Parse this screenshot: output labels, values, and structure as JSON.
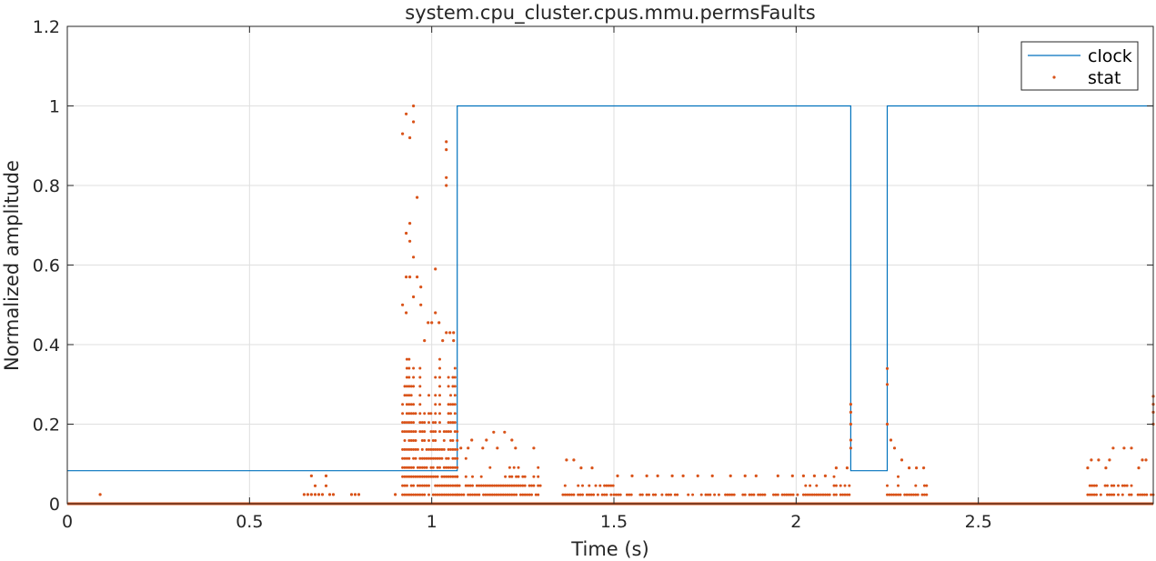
{
  "chart_data": {
    "type": "line",
    "title": "system.cpu_cluster.cpus.mmu.permsFaults",
    "xlabel": "Time (s)",
    "ylabel": "Normalized amplitude",
    "xlim": [
      0,
      2.98
    ],
    "ylim": [
      0,
      1.2
    ],
    "x_ticks": [
      0,
      0.5,
      1,
      1.5,
      2,
      2.5
    ],
    "x_tick_labels": [
      "0",
      "0.5",
      "1",
      "1.5",
      "2",
      "2.5"
    ],
    "y_ticks": [
      0,
      0.2,
      0.4,
      0.6,
      0.8,
      1,
      1.2
    ],
    "y_tick_labels": [
      "0",
      "0.2",
      "0.4",
      "0.6",
      "0.8",
      "1",
      "1.2"
    ],
    "grid": true,
    "legend_position": "top-right",
    "series": [
      {
        "name": "clock",
        "style": "step-line",
        "color": "#0072BD",
        "x": [
          0,
          1.07,
          1.07,
          2.15,
          2.15,
          2.25,
          2.25,
          2.98
        ],
        "y": [
          0.083,
          0.083,
          1,
          1,
          0.083,
          0.083,
          1,
          1
        ]
      },
      {
        "name": "stat",
        "style": "dots",
        "color": "#D95319",
        "baseline": {
          "x_start": 0,
          "x_end": 2.98,
          "y": 0
        },
        "points": [
          [
            0.09,
            0.023
          ],
          [
            0.65,
            0.023
          ],
          [
            0.66,
            0.023
          ],
          [
            0.67,
            0.023
          ],
          [
            0.67,
            0.07
          ],
          [
            0.68,
            0.023
          ],
          [
            0.68,
            0.045
          ],
          [
            0.69,
            0.023
          ],
          [
            0.7,
            0.023
          ],
          [
            0.71,
            0.07
          ],
          [
            0.71,
            0.045
          ],
          [
            0.72,
            0.023
          ],
          [
            0.73,
            0.023
          ],
          [
            0.78,
            0.023
          ],
          [
            0.79,
            0.023
          ],
          [
            0.8,
            0.023
          ],
          [
            0.9,
            0.023
          ],
          [
            0.92,
            0.93
          ],
          [
            0.93,
            0.98
          ],
          [
            0.93,
            0.68
          ],
          [
            0.94,
            0.705
          ],
          [
            0.94,
            0.92
          ],
          [
            0.94,
            0.66
          ],
          [
            0.95,
            0.96
          ],
          [
            0.95,
            0.62
          ],
          [
            0.95,
            1.0
          ],
          [
            0.96,
            0.77
          ],
          [
            0.97,
            0.545
          ],
          [
            0.98,
            0.41
          ],
          [
            0.99,
            0.455
          ],
          [
            1.01,
            0.59
          ],
          [
            1.0,
            0.455
          ],
          [
            1.01,
            0.48
          ],
          [
            1.02,
            0.455
          ],
          [
            1.03,
            0.41
          ],
          [
            1.04,
            0.43
          ],
          [
            1.04,
            0.91
          ],
          [
            1.04,
            0.89
          ],
          [
            1.04,
            0.82
          ],
          [
            1.04,
            0.8
          ],
          [
            1.05,
            0.43
          ],
          [
            0.93,
            0.57
          ],
          [
            0.94,
            0.57
          ],
          [
            0.92,
            0.5
          ],
          [
            0.93,
            0.48
          ],
          [
            0.95,
            0.52
          ],
          [
            0.96,
            0.57
          ],
          [
            0.97,
            0.5
          ],
          [
            1.06,
            0.43
          ],
          [
            1.06,
            0.41
          ],
          [
            1.17,
            0.18
          ],
          [
            1.2,
            0.18
          ],
          [
            1.11,
            0.16
          ],
          [
            1.15,
            0.16
          ],
          [
            1.22,
            0.16
          ],
          [
            1.08,
            0.14
          ],
          [
            1.1,
            0.14
          ],
          [
            1.14,
            0.14
          ],
          [
            1.18,
            0.14
          ],
          [
            1.23,
            0.14
          ],
          [
            1.28,
            0.14
          ],
          [
            1.37,
            0.11
          ],
          [
            1.39,
            0.11
          ],
          [
            1.41,
            0.09
          ],
          [
            1.44,
            0.09
          ],
          [
            1.51,
            0.07
          ],
          [
            1.55,
            0.07
          ],
          [
            1.59,
            0.07
          ],
          [
            1.62,
            0.07
          ],
          [
            1.66,
            0.07
          ],
          [
            1.69,
            0.07
          ],
          [
            1.73,
            0.07
          ],
          [
            1.77,
            0.07
          ],
          [
            1.82,
            0.07
          ],
          [
            1.86,
            0.07
          ],
          [
            1.89,
            0.07
          ],
          [
            1.95,
            0.07
          ],
          [
            1.99,
            0.07
          ],
          [
            2.02,
            0.07
          ],
          [
            2.05,
            0.07
          ],
          [
            2.08,
            0.07
          ],
          [
            2.11,
            0.09
          ],
          [
            2.14,
            0.09
          ],
          [
            2.15,
            0.25
          ],
          [
            2.15,
            0.23
          ],
          [
            2.15,
            0.2
          ],
          [
            2.15,
            0.16
          ],
          [
            2.15,
            0.14
          ],
          [
            2.25,
            0.34
          ],
          [
            2.25,
            0.3
          ],
          [
            2.25,
            0.2
          ],
          [
            2.26,
            0.16
          ],
          [
            2.27,
            0.14
          ],
          [
            2.29,
            0.11
          ],
          [
            2.31,
            0.09
          ],
          [
            2.33,
            0.09
          ],
          [
            2.35,
            0.09
          ],
          [
            2.8,
            0.09
          ],
          [
            2.81,
            0.11
          ],
          [
            2.83,
            0.11
          ],
          [
            2.85,
            0.09
          ],
          [
            2.86,
            0.11
          ],
          [
            2.87,
            0.14
          ],
          [
            2.9,
            0.14
          ],
          [
            2.92,
            0.14
          ],
          [
            2.94,
            0.09
          ],
          [
            2.95,
            0.11
          ],
          [
            2.96,
            0.11
          ],
          [
            2.98,
            0.27
          ],
          [
            2.98,
            0.25
          ],
          [
            2.98,
            0.23
          ],
          [
            2.98,
            0.2
          ]
        ],
        "dense_bands": [
          {
            "x_start": 0.92,
            "x_end": 1.07,
            "y_max": 0.39,
            "step": 0.0227
          },
          {
            "x_start": 1.07,
            "x_end": 1.3,
            "y_max": 0.115,
            "step": 0.0227
          },
          {
            "x_start": 1.36,
            "x_end": 1.5,
            "y_max": 0.07,
            "step": 0.0227
          },
          {
            "x_start": 1.5,
            "x_end": 2.02,
            "y_max": 0.045,
            "step": 0.0227
          },
          {
            "x_start": 2.02,
            "x_end": 2.15,
            "y_max": 0.07,
            "step": 0.0227
          },
          {
            "x_start": 2.25,
            "x_end": 2.36,
            "y_max": 0.07,
            "step": 0.0227
          },
          {
            "x_start": 2.8,
            "x_end": 2.98,
            "y_max": 0.07,
            "step": 0.0227
          }
        ]
      }
    ]
  }
}
